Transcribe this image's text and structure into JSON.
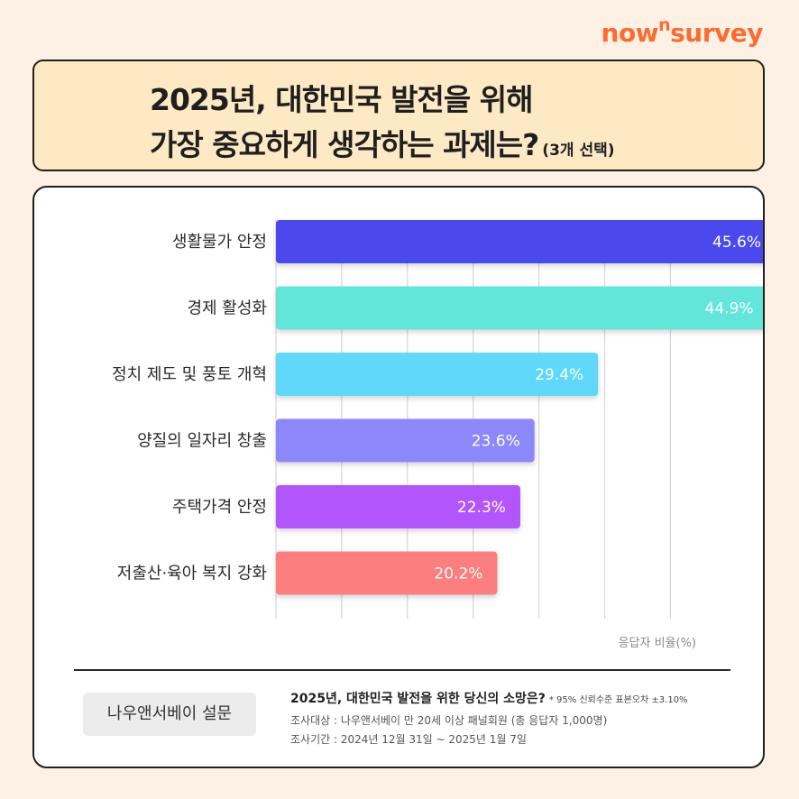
{
  "brand": {
    "prefix": "now",
    "sup": "n",
    "suffix": "survey"
  },
  "header": {
    "title_line1": "2025년, 대한민국 발전을 위해",
    "title_line2": "가장 중요하게 생각하는 과제는?",
    "title_note": "(3개 선택)"
  },
  "chart_data": {
    "type": "bar",
    "orientation": "horizontal",
    "categories": [
      "생활물가 안정",
      "경제 활성화",
      "정치 제도 및 풍토 개혁",
      "양질의 일자리 창출",
      "주택가격 안정",
      "저출산·육아 복지 강화"
    ],
    "values": [
      45.6,
      44.9,
      29.4,
      23.6,
      22.3,
      20.2
    ],
    "value_labels": [
      "45.6%",
      "44.9%",
      "29.4%",
      "23.6%",
      "22.3%",
      "20.2%"
    ],
    "bar_colors": [
      "#4b48ee",
      "#62e6d9",
      "#5fd8fb",
      "#8c88fb",
      "#b254fb",
      "#fc7e7e"
    ],
    "axis_label": "응답자 비율(%)",
    "xlim": [
      0,
      60
    ],
    "grid": true
  },
  "footer": {
    "badge": "나우앤서베이 설문",
    "question": "2025년, 대한민국 발전을 위한 당신의 소망은?",
    "confidence": "* 95% 신뢰수준 표본오차 ±3.10%",
    "target": "조사대상 : 나우앤서베이 만 20세 이상 패널회원 (총 응답자 1,000명)",
    "period": "조사기간 : 2024년 12월 31일 ~ 2025년 1월 7일"
  }
}
